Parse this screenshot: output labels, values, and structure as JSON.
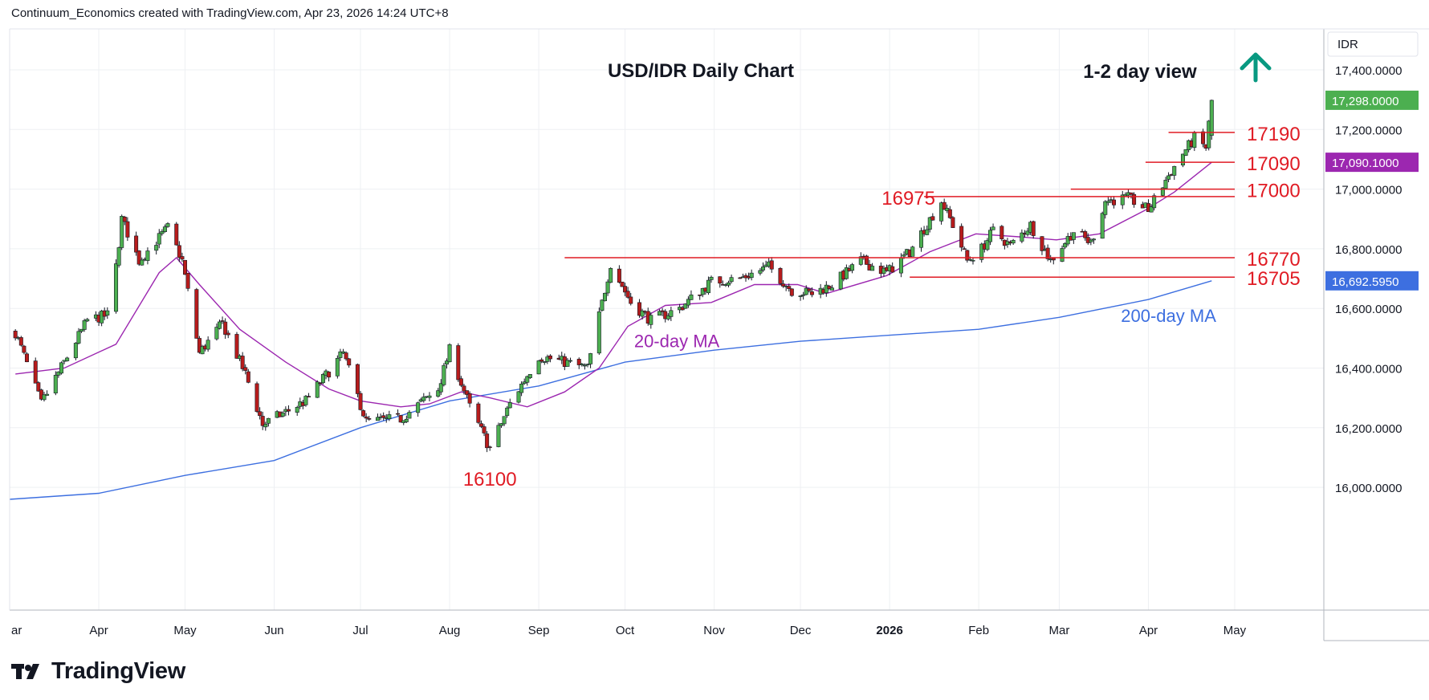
{
  "header": {
    "attribution": "Continuum_Economics created with TradingView.com, Apr 23, 2026 14:24 UTC+8"
  },
  "footer": {
    "brand": "TradingView"
  },
  "colors": {
    "up_candle": "#4caf50",
    "down_candle": "#b71c1c",
    "level": "#e01b24",
    "ma20": "#9c27b0",
    "ma200": "#3d6fe0",
    "arrow": "#089981",
    "grid": "#eef0f3"
  },
  "icons": {
    "arrow": "up-arrow-icon",
    "logo": "tradingview-logo-icon"
  },
  "chart_data": {
    "type": "candlestick",
    "title": "USD/IDR Daily Chart",
    "view": "1-2 day view",
    "currency": "IDR",
    "ylim": [
      15870,
      17470
    ],
    "y_ticks": [
      {
        "v": 17400,
        "label": "17,400.0000"
      },
      {
        "v": 17200,
        "label": "17,200.0000"
      },
      {
        "v": 17000,
        "label": "17,000.0000"
      },
      {
        "v": 16800,
        "label": "16,800.0000"
      },
      {
        "v": 16600,
        "label": "16,600.0000"
      },
      {
        "v": 16400,
        "label": "16,400.0000"
      },
      {
        "v": 16200,
        "label": "16,200.0000"
      },
      {
        "v": 16000,
        "label": "16,000.0000"
      }
    ],
    "x_ticks": [
      {
        "label": "ar",
        "date": "2025-03-01"
      },
      {
        "label": "Apr",
        "date": "2025-04-01"
      },
      {
        "label": "May",
        "date": "2025-05-01"
      },
      {
        "label": "Jun",
        "date": "2025-06-01"
      },
      {
        "label": "Jul",
        "date": "2025-07-01"
      },
      {
        "label": "Aug",
        "date": "2025-08-01"
      },
      {
        "label": "Sep",
        "date": "2025-09-01"
      },
      {
        "label": "Oct",
        "date": "2025-10-01"
      },
      {
        "label": "Nov",
        "date": "2025-11-01"
      },
      {
        "label": "Dec",
        "date": "2025-12-01"
      },
      {
        "label": "2026",
        "date": "2026-01-01",
        "bold": true
      },
      {
        "label": "Feb",
        "date": "2026-02-01"
      },
      {
        "label": "Mar",
        "date": "2026-03-01"
      },
      {
        "label": "Apr",
        "date": "2026-04-01"
      },
      {
        "label": "May",
        "date": "2026-05-01"
      }
    ],
    "last_price": {
      "value": 17298,
      "label": "17,298.0000"
    },
    "price_tags": [
      {
        "value": 17090.1,
        "label": "17,090.1000",
        "color": "#9c27b0"
      },
      {
        "value": 16692.595,
        "label": "16,692.5950",
        "color": "#3d6fe0"
      }
    ],
    "levels": [
      {
        "label": "17190",
        "value": 17190,
        "from": "2026-04-08",
        "to": "2026-04-23"
      },
      {
        "label": "17090",
        "value": 17090,
        "from": "2026-03-31",
        "to": "2026-04-23"
      },
      {
        "label": "17000",
        "value": 17000,
        "from": "2026-03-05",
        "to": "2026-04-23"
      },
      {
        "label": "16975",
        "value": 16975,
        "from": "2026-01-13",
        "to": "2026-04-23"
      },
      {
        "label": "16770",
        "value": 16770,
        "from": "2025-09-10",
        "to": "2026-04-23"
      },
      {
        "label": "16705",
        "value": 16705,
        "from": "2026-01-08",
        "to": "2026-04-23"
      },
      {
        "label": "16100",
        "value": 16100,
        "date": "2025-08-15"
      }
    ],
    "series": [
      {
        "name": "20-day MA",
        "points": [
          [
            "2025-03-03",
            16380
          ],
          [
            "2025-03-20",
            16400
          ],
          [
            "2025-04-07",
            16480
          ],
          [
            "2025-04-22",
            16720
          ],
          [
            "2025-04-28",
            16770
          ],
          [
            "2025-05-06",
            16680
          ],
          [
            "2025-05-20",
            16530
          ],
          [
            "2025-06-05",
            16420
          ],
          [
            "2025-06-20",
            16330
          ],
          [
            "2025-07-01",
            16290
          ],
          [
            "2025-07-15",
            16270
          ],
          [
            "2025-07-25",
            16280
          ],
          [
            "2025-08-05",
            16320
          ],
          [
            "2025-08-15",
            16300
          ],
          [
            "2025-08-28",
            16270
          ],
          [
            "2025-09-10",
            16320
          ],
          [
            "2025-09-22",
            16400
          ],
          [
            "2025-10-02",
            16540
          ],
          [
            "2025-10-15",
            16610
          ],
          [
            "2025-10-31",
            16620
          ],
          [
            "2025-11-15",
            16680
          ],
          [
            "2025-11-30",
            16680
          ],
          [
            "2025-12-10",
            16650
          ],
          [
            "2025-12-31",
            16710
          ],
          [
            "2026-01-15",
            16790
          ],
          [
            "2026-01-31",
            16850
          ],
          [
            "2026-02-15",
            16840
          ],
          [
            "2026-02-28",
            16830
          ],
          [
            "2026-03-15",
            16850
          ],
          [
            "2026-03-31",
            16930
          ],
          [
            "2026-04-10",
            16990
          ],
          [
            "2026-04-23",
            17090
          ]
        ]
      },
      {
        "name": "200-day MA",
        "points": [
          [
            "2025-03-01",
            15960
          ],
          [
            "2025-04-01",
            15980
          ],
          [
            "2025-05-01",
            16040
          ],
          [
            "2025-06-01",
            16090
          ],
          [
            "2025-07-01",
            16200
          ],
          [
            "2025-08-01",
            16290
          ],
          [
            "2025-09-01",
            16340
          ],
          [
            "2025-10-01",
            16420
          ],
          [
            "2025-11-01",
            16460
          ],
          [
            "2025-12-01",
            16490
          ],
          [
            "2026-01-01",
            16510
          ],
          [
            "2026-02-01",
            16530
          ],
          [
            "2026-03-01",
            16570
          ],
          [
            "2026-04-01",
            16630
          ],
          [
            "2026-04-23",
            16692.6
          ]
        ]
      }
    ],
    "ohlc_keypoints": [
      [
        "2025-03-03",
        16520
      ],
      [
        "2025-03-12",
        16280
      ],
      [
        "2025-03-20",
        16420
      ],
      [
        "2025-03-28",
        16560
      ],
      [
        "2025-04-05",
        16580
      ],
      [
        "2025-04-09",
        16900
      ],
      [
        "2025-04-15",
        16760
      ],
      [
        "2025-04-25",
        16870
      ],
      [
        "2025-04-30",
        16760
      ],
      [
        "2025-05-06",
        16450
      ],
      [
        "2025-05-14",
        16550
      ],
      [
        "2025-05-22",
        16380
      ],
      [
        "2025-05-28",
        16210
      ],
      [
        "2025-06-12",
        16290
      ],
      [
        "2025-06-25",
        16450
      ],
      [
        "2025-07-03",
        16220
      ],
      [
        "2025-07-15",
        16230
      ],
      [
        "2025-07-28",
        16330
      ],
      [
        "2025-08-01",
        16460
      ],
      [
        "2025-08-08",
        16270
      ],
      [
        "2025-08-15",
        16130
      ],
      [
        "2025-08-22",
        16280
      ],
      [
        "2025-09-01",
        16440
      ],
      [
        "2025-09-10",
        16420
      ],
      [
        "2025-09-18",
        16400
      ],
      [
        "2025-09-26",
        16750
      ],
      [
        "2025-10-03",
        16620
      ],
      [
        "2025-10-10",
        16560
      ],
      [
        "2025-10-20",
        16600
      ],
      [
        "2025-10-31",
        16690
      ],
      [
        "2025-11-10",
        16700
      ],
      [
        "2025-11-20",
        16740
      ],
      [
        "2025-11-28",
        16660
      ],
      [
        "2025-12-05",
        16650
      ],
      [
        "2025-12-12",
        16680
      ],
      [
        "2025-12-22",
        16760
      ],
      [
        "2025-12-31",
        16720
      ],
      [
        "2026-01-08",
        16790
      ],
      [
        "2026-01-19",
        16960
      ],
      [
        "2026-01-23",
        16880
      ],
      [
        "2026-01-28",
        16760
      ],
      [
        "2026-02-02",
        16800
      ],
      [
        "2026-02-06",
        16860
      ],
      [
        "2026-02-12",
        16810
      ],
      [
        "2026-02-19",
        16880
      ],
      [
        "2026-02-26",
        16760
      ],
      [
        "2026-03-06",
        16860
      ],
      [
        "2026-03-12",
        16820
      ],
      [
        "2026-03-17",
        16960
      ],
      [
        "2026-03-25",
        16970
      ],
      [
        "2026-04-01",
        16930
      ],
      [
        "2026-04-07",
        17030
      ],
      [
        "2026-04-13",
        17120
      ],
      [
        "2026-04-17",
        17170
      ],
      [
        "2026-04-21",
        17140
      ],
      [
        "2026-04-23",
        17298
      ]
    ],
    "annotations": [
      {
        "text": "20-day MA",
        "date": "2025-10-19",
        "value": 16470,
        "color": "#9c27b0"
      },
      {
        "text": "200-day MA",
        "date": "2026-04-08",
        "value": 16555,
        "color": "#3d6fe0"
      }
    ]
  }
}
